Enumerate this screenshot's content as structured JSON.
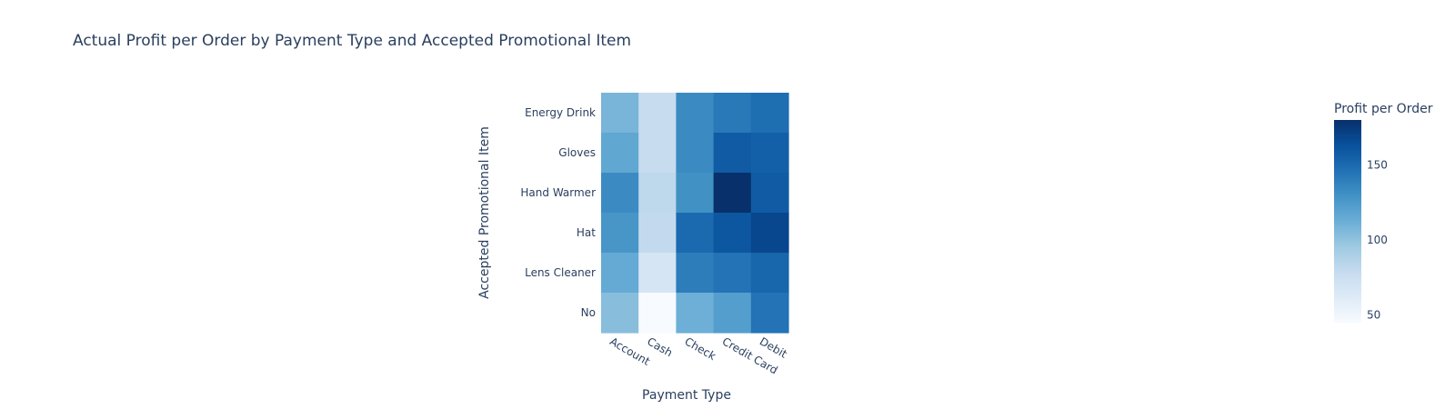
{
  "chart_data": {
    "type": "heatmap",
    "title": "Actual Profit per Order by Payment Type and Accepted Promotional Item",
    "xlabel": "Payment Type",
    "ylabel": "Accepted Promotional Item",
    "x": [
      "Account",
      "Cash",
      "Check",
      "Credit Card",
      "Debit"
    ],
    "y": [
      "Energy Drink",
      "Gloves",
      "Hand Warmer",
      "Hat",
      "Lens Cleaner",
      "No"
    ],
    "z": [
      [
        108,
        78,
        133,
        142,
        148
      ],
      [
        117,
        78,
        133,
        158,
        155
      ],
      [
        133,
        82,
        130,
        180,
        158
      ],
      [
        127,
        80,
        150,
        160,
        168
      ],
      [
        115,
        68,
        140,
        145,
        152
      ],
      [
        103,
        45,
        112,
        122,
        145
      ]
    ],
    "colorbar": {
      "title": "Profit per Order",
      "range": [
        45,
        180
      ],
      "ticks": [
        50,
        100,
        150
      ],
      "colorscale": "Blues",
      "colors": [
        "#f7fbff",
        "#deebf7",
        "#c6dbef",
        "#9ecae1",
        "#6baed6",
        "#4292c6",
        "#2171b5",
        "#08519c",
        "#08306b"
      ]
    }
  }
}
